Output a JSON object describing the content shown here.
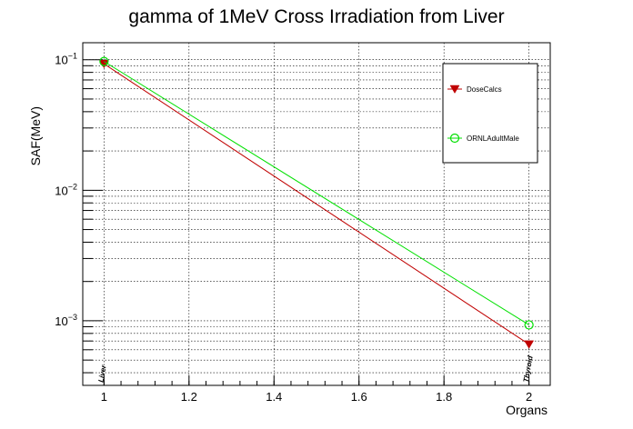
{
  "chart_data": {
    "type": "line",
    "title": "gamma of 1MeV Cross Irradiation from Liver",
    "xlabel": "Organs",
    "ylabel": "SAF(MeV)",
    "xlim": [
      0.95,
      2.05
    ],
    "ylim": [
      0.00032,
      0.135
    ],
    "yscale": "log",
    "grid": true,
    "x_ticks": [
      {
        "value": 1,
        "label": "1"
      },
      {
        "value": 1.2,
        "label": "1.2"
      },
      {
        "value": 1.4,
        "label": "1.4"
      },
      {
        "value": 1.6,
        "label": "1.6"
      },
      {
        "value": 1.8,
        "label": "1.8"
      },
      {
        "value": 2,
        "label": "2"
      }
    ],
    "y_ticks": [
      {
        "value": 0.1,
        "base": "10",
        "exp": "−1"
      },
      {
        "value": 0.01,
        "base": "10",
        "exp": "−2"
      },
      {
        "value": 0.001,
        "base": "10",
        "exp": "−3"
      }
    ],
    "organ_labels": [
      {
        "x": 1,
        "label": "Liver"
      },
      {
        "x": 2,
        "label": "Thyroid"
      }
    ],
    "legend_position": "top-right",
    "series": [
      {
        "name": "DoseCalcs",
        "color": "#c00000",
        "marker": "triangle-down",
        "x": [
          1,
          2
        ],
        "values": [
          0.093,
          0.00066
        ]
      },
      {
        "name": "ORNLAdultMale",
        "color": "#00e000",
        "marker": "circle-open",
        "x": [
          1,
          2
        ],
        "values": [
          0.097,
          0.00093
        ]
      }
    ]
  }
}
